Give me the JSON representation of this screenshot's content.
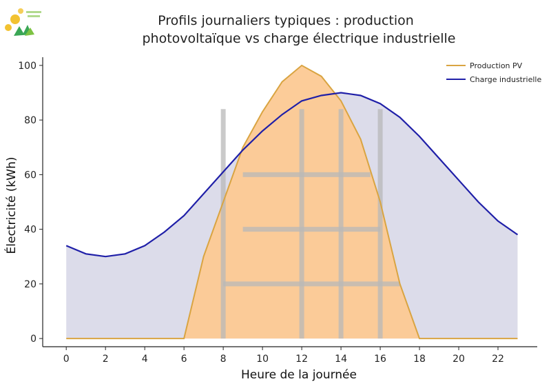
{
  "chart_data": {
    "type": "area",
    "title": "Profils journaliers typiques : production photovoltaïque vs charge électrique industrielle",
    "title_lines": [
      "Profils journaliers typiques : production",
      "photovoltaïque vs charge électrique industrielle"
    ],
    "xlabel": "Heure de la journée",
    "ylabel": "Électricité (kWh)",
    "xlim": [
      -1.2,
      24
    ],
    "ylim": [
      -3,
      103
    ],
    "x_ticks": [
      0,
      2,
      4,
      6,
      8,
      10,
      12,
      14,
      16,
      18,
      20,
      22
    ],
    "y_ticks": [
      0,
      20,
      40,
      60,
      80,
      100
    ],
    "legend_position": "top-right",
    "x": [
      0,
      1,
      2,
      3,
      4,
      5,
      6,
      7,
      8,
      9,
      10,
      11,
      12,
      13,
      14,
      15,
      16,
      17,
      18,
      19,
      20,
      21,
      22,
      23
    ],
    "series": [
      {
        "name": "Production PV",
        "color": "#d9a441",
        "fill": "#fcc994",
        "values": [
          0,
          0,
          0,
          0,
          0,
          0,
          0,
          30,
          50,
          70,
          83,
          94,
          100,
          96,
          87,
          73,
          50,
          20,
          0,
          0,
          0,
          0,
          0,
          0
        ]
      },
      {
        "name": "Charge industrielle",
        "color": "#1f1fa8",
        "fill": "#dcdcea",
        "values": [
          34,
          31,
          30,
          31,
          34,
          39,
          45,
          53,
          61,
          69,
          76,
          82,
          87,
          89,
          90,
          89,
          86,
          81,
          74,
          66,
          58,
          50,
          43,
          38
        ]
      }
    ],
    "logo_colors": [
      "#f2c230",
      "#3aa655",
      "#7dc242"
    ]
  }
}
